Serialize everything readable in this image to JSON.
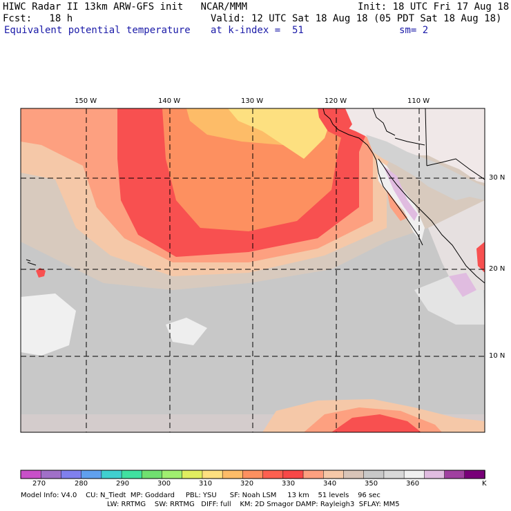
{
  "header": {
    "line1_left": "HIWC Radar II 13km ARW-GFS init   NCAR/MMM",
    "line1_right": "Init: 18 UTC Fri 17 Aug 18",
    "line2_left": "Fcst:   18 h",
    "line2_right": "Valid: 12 UTC Sat 18 Aug 18 (05 PDT Sat 18 Aug 18)",
    "line3_left": "Equivalent potential temperature",
    "line3_mid": "at k-index =  51",
    "line3_right": "sm= 2"
  },
  "map": {
    "lon_labels": [
      "150 W",
      "140 W",
      "130 W",
      "120 W",
      "110 W"
    ],
    "lon_values": [
      -150,
      -140,
      -130,
      -120,
      -110
    ],
    "lat_labels": [
      "30 N",
      "20 N",
      "10 N"
    ],
    "lat_values": [
      30,
      20,
      10
    ]
  },
  "colorbar": {
    "colors": [
      "#c850c8",
      "#a070c8",
      "#8080ee",
      "#60a0ee",
      "#40d0d0",
      "#40e0a0",
      "#70e070",
      "#a0ee70",
      "#e0ee60",
      "#fde080",
      "#fdbc68",
      "#fd9060",
      "#fd6050",
      "#f84848",
      "#fda080",
      "#f5c8a8",
      "#d8c4b8",
      "#c8c8c8",
      "#d8d8d8",
      "#f0f0f0",
      "#e0bce0",
      "#a040a0",
      "#780078"
    ],
    "tick_labels": [
      "270",
      "280",
      "290",
      "300",
      "310",
      "320",
      "330",
      "340",
      "350",
      "360"
    ],
    "units": "K"
  },
  "footer": {
    "line1": "Model Info: V4.0    CU: N_Tiedt  MP: Goddard     PBL: YSU      SF: Noah LSM     13 km    51 levels    96 sec",
    "line2": "LW: RRTMG    SW: RRTMG   DIFF: full    KM: 2D Smagor DAMP: Rayleigh3  SFLAY: MM5"
  }
}
